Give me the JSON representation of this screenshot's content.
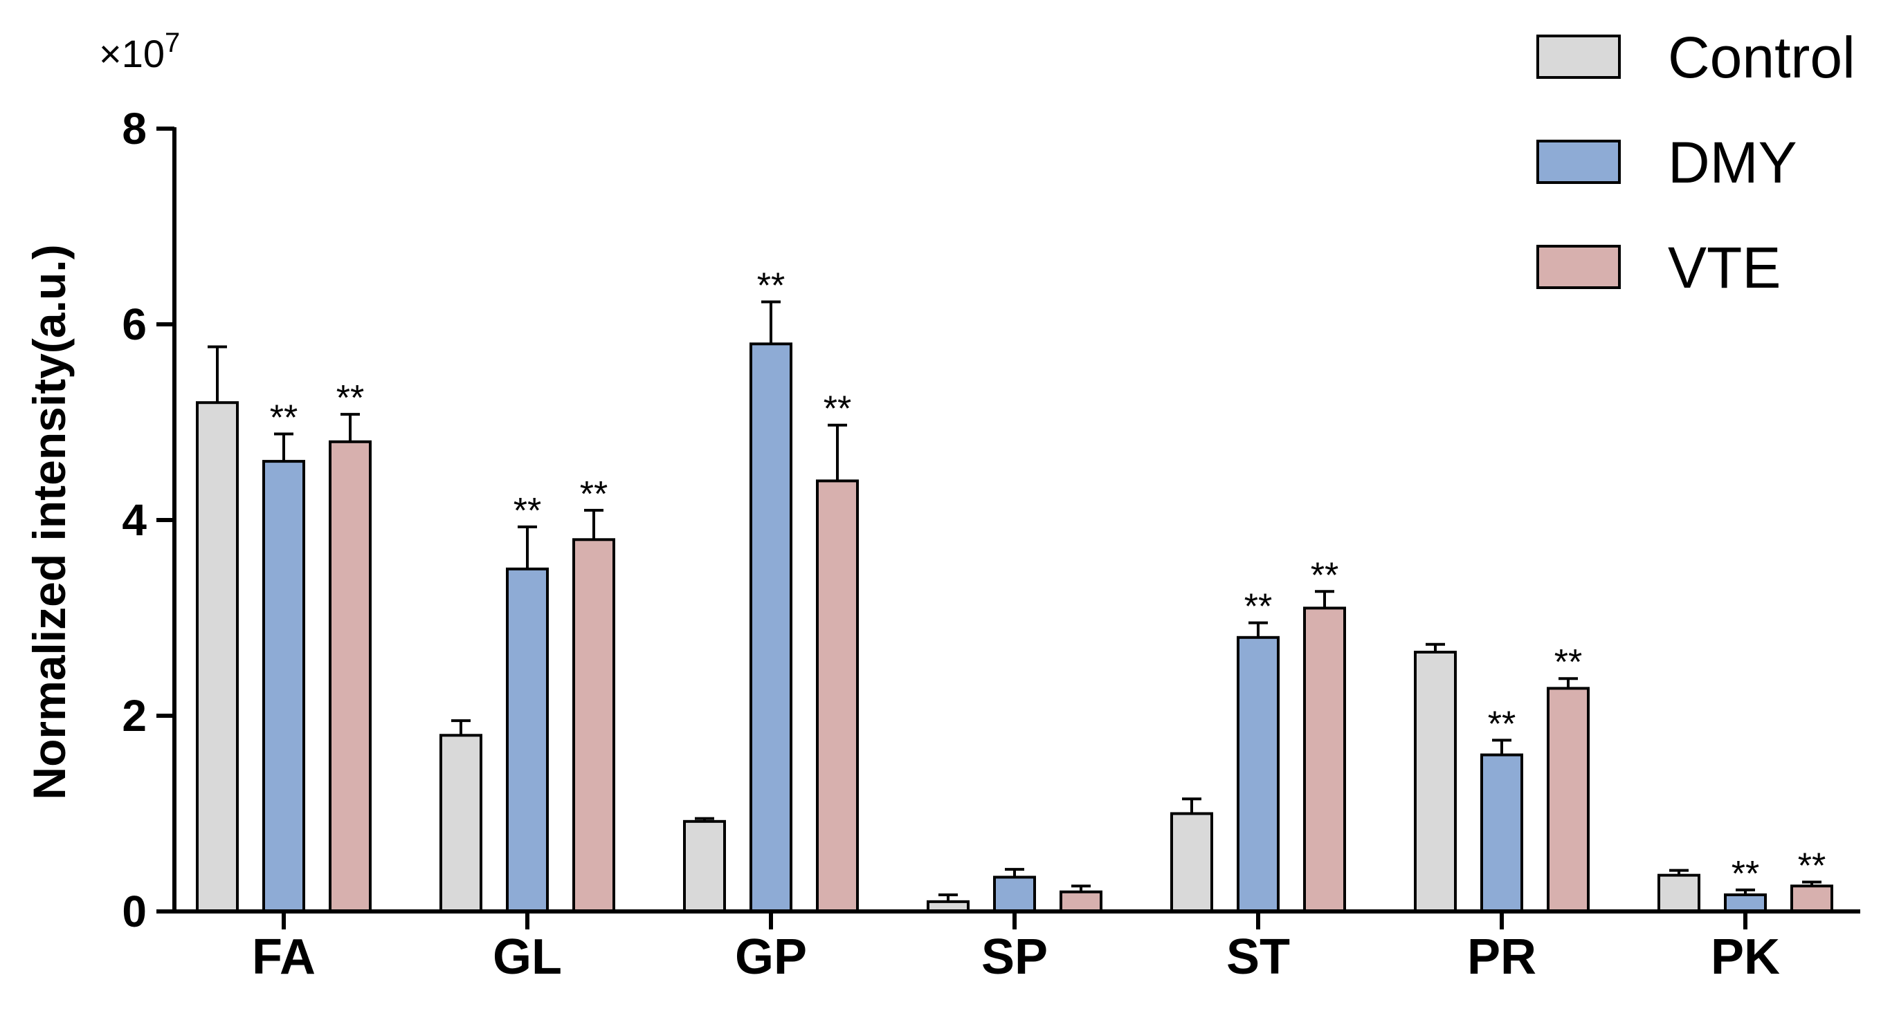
{
  "chart_data": {
    "type": "bar",
    "title": "",
    "xlabel": "",
    "ylabel": "Normalized intensity(a.u.)",
    "y_multiplier": "×10",
    "y_exponent": "7",
    "ylim": [
      0,
      8
    ],
    "yticks": [
      "0",
      "2",
      "4",
      "6",
      "8"
    ],
    "legend_position": "top-right",
    "categories": [
      "FA",
      "GL",
      "GP",
      "SP",
      "ST",
      "PR",
      "PK"
    ],
    "series": [
      {
        "name": "Control",
        "color": "#d9d9d9",
        "values": [
          5.2,
          1.8,
          0.92,
          0.1,
          1.0,
          2.65,
          0.37
        ],
        "errors": [
          0.57,
          0.15,
          0.03,
          0.07,
          0.15,
          0.08,
          0.05
        ],
        "significance": [
          "",
          "",
          "",
          "",
          "",
          "",
          ""
        ]
      },
      {
        "name": "DMY",
        "color": "#8eabd5",
        "values": [
          4.6,
          3.5,
          5.8,
          0.35,
          2.8,
          1.6,
          0.17
        ],
        "errors": [
          0.28,
          0.43,
          0.43,
          0.08,
          0.15,
          0.15,
          0.05
        ],
        "significance": [
          "**",
          "**",
          "**",
          "",
          "**",
          "**",
          "**"
        ]
      },
      {
        "name": "VTE",
        "color": "#d7b0ae",
        "values": [
          4.8,
          3.8,
          4.4,
          0.2,
          3.1,
          2.28,
          0.26
        ],
        "errors": [
          0.28,
          0.3,
          0.57,
          0.06,
          0.17,
          0.1,
          0.04
        ],
        "significance": [
          "**",
          "**",
          "**",
          "",
          "**",
          "**",
          "**"
        ]
      }
    ]
  }
}
